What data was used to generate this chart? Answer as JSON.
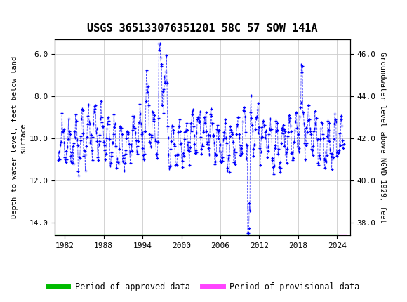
{
  "title": "USGS 365133076351201 58C 57 SOW 141A",
  "header_color": "#1a6b3c",
  "plot_bg": "#ffffff",
  "grid_color": "#cccccc",
  "data_color": "#0000ff",
  "left_ylabel": "Depth to water level, feet below land\nsurface",
  "right_ylabel": "Groundwater level above NGVD 1929, feet",
  "xlim": [
    1980.5,
    2026.0
  ],
  "ylim_left": [
    14.6,
    5.3
  ],
  "ylim_right": [
    37.4,
    46.7
  ],
  "yticks_left": [
    6.0,
    8.0,
    10.0,
    12.0,
    14.0
  ],
  "yticks_right": [
    38.0,
    40.0,
    42.0,
    44.0,
    46.0
  ],
  "xticks": [
    1982,
    1988,
    1994,
    2000,
    2006,
    2012,
    2018,
    2024
  ],
  "legend_items": [
    {
      "label": "Period of approved data",
      "color": "#00bb00",
      "linewidth": 5
    },
    {
      "label": "Period of provisional data",
      "color": "#ff44ff",
      "linewidth": 5
    }
  ],
  "approved_xrange": [
    1981,
    2024.3
  ],
  "provisional_xrange": [
    2024.3,
    2025.5
  ],
  "figsize": [
    5.8,
    4.3
  ],
  "dpi": 100
}
